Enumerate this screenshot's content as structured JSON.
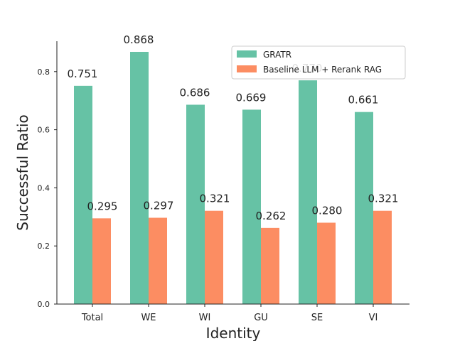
{
  "chart_data": {
    "type": "bar",
    "title": "",
    "xlabel": "Identity",
    "ylabel": "Successful Ratio",
    "categories": [
      "Total",
      "WE",
      "WI",
      "GU",
      "SE",
      "VI"
    ],
    "ylim": [
      0,
      0.9
    ],
    "yticks": [
      "0.0",
      "0.2",
      "0.4",
      "0.6",
      "0.8"
    ],
    "grid": false,
    "legend_position": "top-right",
    "series": [
      {
        "name": "GRATR",
        "color": "#66c2a5",
        "values": [
          0.751,
          0.868,
          0.686,
          0.669,
          0.77,
          0.661
        ],
        "labels": [
          "0.751",
          "0.868",
          "0.686",
          "0.669",
          "0.770",
          "0.661"
        ]
      },
      {
        "name": "Baseline LLM + Rerank RAG",
        "color": "#fc8d62",
        "values": [
          0.295,
          0.297,
          0.321,
          0.262,
          0.28,
          0.321
        ],
        "labels": [
          "0.295",
          "0.297",
          "0.321",
          "0.262",
          "0.280",
          "0.321"
        ]
      }
    ]
  }
}
